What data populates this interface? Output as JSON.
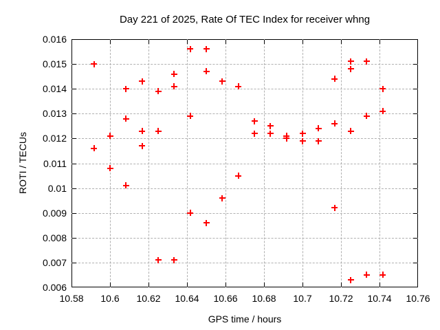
{
  "chart_data": {
    "type": "scatter",
    "title": "Day 221 of 2025, Rate Of TEC Index for receiver whng",
    "xlabel": "GPS time / hours",
    "ylabel": "ROTI / TECUs",
    "xlim": [
      10.58,
      10.76
    ],
    "ylim": [
      0.006,
      0.016
    ],
    "x_ticks": [
      10.58,
      10.6,
      10.62,
      10.64,
      10.66,
      10.68,
      10.7,
      10.72,
      10.74,
      10.76
    ],
    "x_tick_labels": [
      "10.58",
      "10.6",
      "10.62",
      "10.64",
      "10.66",
      "10.68",
      "10.7",
      "10.72",
      "10.74",
      "10.76"
    ],
    "y_ticks": [
      0.006,
      0.007,
      0.008,
      0.009,
      0.01,
      0.011,
      0.012,
      0.013,
      0.014,
      0.015,
      0.016
    ],
    "y_tick_labels": [
      "0.006",
      "0.007",
      "0.008",
      "0.009",
      "0.01",
      "0.011",
      "0.012",
      "0.013",
      "0.014",
      "0.015",
      "0.016"
    ],
    "grid": true,
    "legend": false,
    "marker": "plus",
    "series": [
      {
        "name": "ROTI",
        "points": [
          [
            10.5917,
            0.015
          ],
          [
            10.5917,
            0.0116
          ],
          [
            10.6,
            0.0121
          ],
          [
            10.6,
            0.0108
          ],
          [
            10.6083,
            0.014
          ],
          [
            10.6083,
            0.0128
          ],
          [
            10.6083,
            0.0101
          ],
          [
            10.6167,
            0.0143
          ],
          [
            10.6167,
            0.0123
          ],
          [
            10.6167,
            0.0117
          ],
          [
            10.625,
            0.0139
          ],
          [
            10.625,
            0.0123
          ],
          [
            10.625,
            0.0071
          ],
          [
            10.6333,
            0.0146
          ],
          [
            10.6333,
            0.0141
          ],
          [
            10.6333,
            0.0071
          ],
          [
            10.6417,
            0.0156
          ],
          [
            10.6417,
            0.0129
          ],
          [
            10.6417,
            0.009
          ],
          [
            10.65,
            0.0156
          ],
          [
            10.65,
            0.0147
          ],
          [
            10.65,
            0.0086
          ],
          [
            10.6583,
            0.0143
          ],
          [
            10.6583,
            0.0096
          ],
          [
            10.6667,
            0.0141
          ],
          [
            10.6667,
            0.0105
          ],
          [
            10.675,
            0.0127
          ],
          [
            10.675,
            0.0122
          ],
          [
            10.6833,
            0.0125
          ],
          [
            10.6833,
            0.0122
          ],
          [
            10.6917,
            0.0121
          ],
          [
            10.6917,
            0.012
          ],
          [
            10.7,
            0.0122
          ],
          [
            10.7,
            0.0119
          ],
          [
            10.7083,
            0.0124
          ],
          [
            10.7083,
            0.0119
          ],
          [
            10.7167,
            0.0144
          ],
          [
            10.7167,
            0.0126
          ],
          [
            10.7167,
            0.0092
          ],
          [
            10.725,
            0.0151
          ],
          [
            10.725,
            0.0148
          ],
          [
            10.725,
            0.0123
          ],
          [
            10.725,
            0.0063
          ],
          [
            10.7333,
            0.0151
          ],
          [
            10.7333,
            0.0129
          ],
          [
            10.7333,
            0.0065
          ],
          [
            10.7417,
            0.014
          ],
          [
            10.7417,
            0.0131
          ],
          [
            10.7417,
            0.0065
          ]
        ]
      }
    ]
  },
  "colors": {
    "marker": "#ff0000",
    "grid": "#b0b0b0",
    "axis": "#000000",
    "background": "#ffffff",
    "text": "#000000"
  }
}
